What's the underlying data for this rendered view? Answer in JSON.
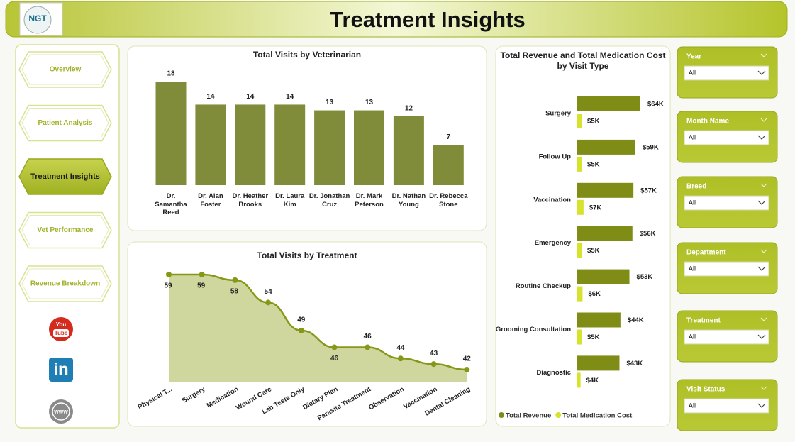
{
  "header": {
    "logo": "NGT",
    "title": "Treatment Insights"
  },
  "nav": {
    "items": [
      "Overview",
      "Patient Analysis",
      "Treatment Insights",
      "Vet Performance",
      "Revenue Breakdown"
    ],
    "active": 2
  },
  "social": {
    "youtube": [
      "You",
      "Tube"
    ],
    "linkedin": "in",
    "web": "WWW"
  },
  "filters": [
    {
      "label": "Year",
      "value": "All"
    },
    {
      "label": "Month Name",
      "value": "All"
    },
    {
      "label": "Breed",
      "value": "All"
    },
    {
      "label": "Department",
      "value": "All"
    },
    {
      "label": "Treatment",
      "value": "All"
    },
    {
      "label": "Visit Status",
      "value": "All"
    }
  ],
  "chart_data": [
    {
      "type": "bar",
      "title": "Total Visits by Veterinarian",
      "color": "#818c3a",
      "categories": [
        "Dr. Samantha Reed",
        "Dr. Alan Foster",
        "Dr. Heather Brooks",
        "Dr. Laura Kim",
        "Dr. Jonathan Cruz",
        "Dr. Mark Peterson",
        "Dr. Nathan Young",
        "Dr. Rebecca Stone"
      ],
      "values": [
        18,
        14,
        14,
        14,
        13,
        13,
        12,
        7
      ]
    },
    {
      "type": "area",
      "title": "Total Visits by Treatment",
      "color": "#869818",
      "fill": "#cfd79e",
      "categories": [
        "Physical T...",
        "Surgery",
        "Medication",
        "Wound Care",
        "Lab Tests Only",
        "Dietary Plan",
        "Parasite Treatment",
        "Observation",
        "Vaccination",
        "Dental Cleaning"
      ],
      "values": [
        59,
        59,
        58,
        54,
        49,
        46,
        46,
        44,
        43,
        42
      ]
    },
    {
      "type": "hbar",
      "title": "Total Revenue and Total Medication Cost by Visit Type",
      "categories": [
        "Surgery",
        "Follow Up",
        "Vaccination",
        "Emergency",
        "Routine Checkup",
        "Grooming Consultation",
        "Diagnostic"
      ],
      "series": [
        {
          "name": "Total Revenue",
          "color": "#7f8c16",
          "values": [
            64000,
            59000,
            57000,
            56000,
            53000,
            44000,
            43000
          ],
          "value_labels": [
            "$64K",
            "$59K",
            "$57K",
            "$56K",
            "$53K",
            "$44K",
            "$43K"
          ]
        },
        {
          "name": "Total Medication Cost",
          "color": "#d6e22c",
          "values": [
            5000,
            5000,
            7000,
            5000,
            6000,
            5000,
            4000
          ],
          "value_labels": [
            "$5K",
            "$5K",
            "$7K",
            "$5K",
            "$6K",
            "$5K",
            "$4K"
          ]
        }
      ],
      "legend": "bottom-left"
    }
  ]
}
